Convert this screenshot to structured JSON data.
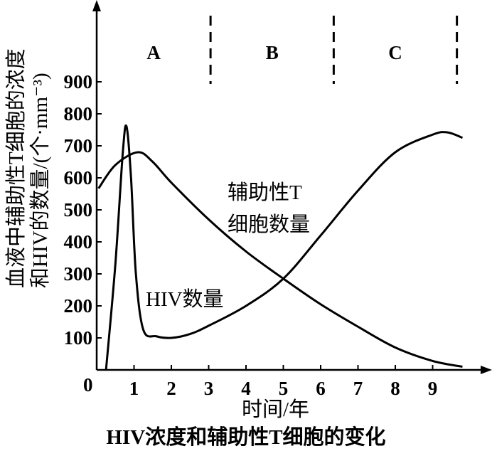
{
  "chart_data": {
    "type": "line",
    "title": "HIV浓度和辅助性T细胞的变化",
    "xlabel": "时间/年",
    "ylabel_lines": [
      "血液中辅助性T细胞的浓度",
      "和HIV的数量/(个·mm⁻³)"
    ],
    "origin_label": "0",
    "xlim": [
      0,
      10.5
    ],
    "ylim": [
      0,
      1000
    ],
    "x_ticks": [
      1,
      2,
      3,
      4,
      5,
      6,
      7,
      8,
      9
    ],
    "y_ticks": [
      100,
      200,
      300,
      400,
      500,
      600,
      700,
      800,
      900
    ],
    "grid": false,
    "line_color": "#000000",
    "phases": [
      {
        "label": "A",
        "x_from": 0,
        "x_to": 3.05
      },
      {
        "label": "B",
        "x_from": 3.05,
        "x_to": 6.35
      },
      {
        "label": "C",
        "x_from": 6.35,
        "x_to": 9.65
      }
    ],
    "series": [
      {
        "name": "HIV数量",
        "points": [
          [
            0.25,
            0
          ],
          [
            0.5,
            330
          ],
          [
            0.7,
            680
          ],
          [
            0.8,
            760
          ],
          [
            0.92,
            600
          ],
          [
            1.05,
            300
          ],
          [
            1.25,
            125
          ],
          [
            1.6,
            105
          ],
          [
            2,
            100
          ],
          [
            2.5,
            112
          ],
          [
            3,
            138
          ],
          [
            4,
            200
          ],
          [
            5,
            285
          ],
          [
            6,
            420
          ],
          [
            7,
            560
          ],
          [
            8,
            680
          ],
          [
            9,
            735
          ],
          [
            9.4,
            742
          ],
          [
            9.8,
            725
          ]
        ]
      },
      {
        "name": "辅助性T细胞数量",
        "points": [
          [
            0.05,
            567
          ],
          [
            0.5,
            640
          ],
          [
            1.1,
            680
          ],
          [
            1.5,
            650
          ],
          [
            2,
            585
          ],
          [
            3,
            470
          ],
          [
            4,
            370
          ],
          [
            5,
            285
          ],
          [
            6,
            205
          ],
          [
            7,
            135
          ],
          [
            8,
            70
          ],
          [
            9,
            28
          ],
          [
            9.8,
            10
          ]
        ]
      }
    ],
    "annotations": {
      "t_cell": [
        "辅助性T",
        "细胞数量"
      ],
      "hiv": "HIV数量"
    }
  }
}
